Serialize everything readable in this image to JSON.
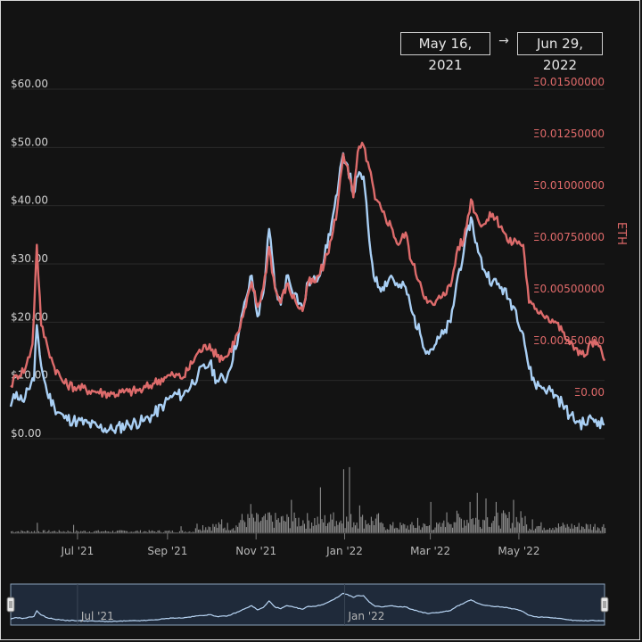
{
  "range_selector": {
    "start": "May 16, 2021",
    "arrow": "→",
    "end": "Jun 29, 2022"
  },
  "colors": {
    "usd_line": "#a9cff4",
    "eth_line": "#dd6b6b",
    "volume": "#8d8d8d",
    "grid": "#2a2a2a",
    "background": "#131313",
    "navigator_fill": "#1f2a3a"
  },
  "chart_data": {
    "type": "line",
    "title": "",
    "y_left": {
      "ticks": [
        "$0.00",
        "$10.00",
        "$20.00",
        "$30.00",
        "$40.00",
        "$50.00",
        "$60.00"
      ],
      "range": [
        0,
        60
      ]
    },
    "y_right": {
      "label": "ETH",
      "ticks": [
        "Ξ0.00",
        "Ξ0.00250000",
        "Ξ0.00500000",
        "Ξ0.00750000",
        "Ξ0.01000000",
        "Ξ0.01250000",
        "Ξ0.01500000"
      ],
      "range": [
        0,
        0.015
      ]
    },
    "x_ticks": [
      {
        "label": "Jul '21",
        "date": "2021-07-01"
      },
      {
        "label": "Sep '21",
        "date": "2021-09-01"
      },
      {
        "label": "Nov '21",
        "date": "2021-11-01"
      },
      {
        "label": "Jan '22",
        "date": "2022-01-01"
      },
      {
        "label": "Mar '22",
        "date": "2022-03-01"
      },
      {
        "label": "May '22",
        "date": "2022-05-01"
      }
    ],
    "navigator_ticks": [
      {
        "label": "Jul '21",
        "date": "2021-07-01"
      },
      {
        "label": "Jan '22",
        "date": "2022-01-01"
      }
    ],
    "x_range": [
      "2021-05-16",
      "2022-06-29"
    ],
    "grid": true,
    "series": [
      {
        "axis": "left",
        "unit": "USD",
        "points": [
          [
            "2021-05-16",
            5.5
          ],
          [
            "2021-05-20",
            8
          ],
          [
            "2021-05-24",
            6.5
          ],
          [
            "2021-05-28",
            8.5
          ],
          [
            "2021-06-01",
            10
          ],
          [
            "2021-06-03",
            19.5
          ],
          [
            "2021-06-06",
            12.5
          ],
          [
            "2021-06-10",
            8
          ],
          [
            "2021-06-15",
            5.5
          ],
          [
            "2021-06-22",
            3.5
          ],
          [
            "2021-07-01",
            3
          ],
          [
            "2021-07-15",
            2
          ],
          [
            "2021-07-25",
            1.5
          ],
          [
            "2021-08-05",
            2.5
          ],
          [
            "2021-08-15",
            3
          ],
          [
            "2021-08-22",
            4
          ],
          [
            "2021-08-30",
            6
          ],
          [
            "2021-09-05",
            7.5
          ],
          [
            "2021-09-12",
            7.5
          ],
          [
            "2021-09-22",
            11
          ],
          [
            "2021-09-30",
            13
          ],
          [
            "2021-10-05",
            10
          ],
          [
            "2021-10-12",
            10.5
          ],
          [
            "2021-10-20",
            18
          ],
          [
            "2021-10-25",
            24
          ],
          [
            "2021-10-29",
            28
          ],
          [
            "2021-11-02",
            21
          ],
          [
            "2021-11-06",
            25
          ],
          [
            "2021-11-10",
            36
          ],
          [
            "2021-11-14",
            26
          ],
          [
            "2021-11-18",
            23
          ],
          [
            "2021-11-22",
            28
          ],
          [
            "2021-11-28",
            25
          ],
          [
            "2021-12-03",
            22
          ],
          [
            "2021-12-07",
            27
          ],
          [
            "2021-12-12",
            27
          ],
          [
            "2021-12-18",
            31
          ],
          [
            "2021-12-23",
            37
          ],
          [
            "2021-12-27",
            42
          ],
          [
            "2021-12-31",
            49
          ],
          [
            "2022-01-03",
            47
          ],
          [
            "2022-01-07",
            42
          ],
          [
            "2022-01-10",
            45
          ],
          [
            "2022-01-14",
            45
          ],
          [
            "2022-01-18",
            34
          ],
          [
            "2022-01-22",
            27
          ],
          [
            "2022-01-27",
            26
          ],
          [
            "2022-02-02",
            28
          ],
          [
            "2022-02-07",
            26
          ],
          [
            "2022-02-12",
            26
          ],
          [
            "2022-02-16",
            22
          ],
          [
            "2022-02-22",
            18
          ],
          [
            "2022-02-27",
            15
          ],
          [
            "2022-03-04",
            16
          ],
          [
            "2022-03-10",
            18
          ],
          [
            "2022-03-15",
            20
          ],
          [
            "2022-03-20",
            28
          ],
          [
            "2022-03-24",
            32
          ],
          [
            "2022-03-29",
            38
          ],
          [
            "2022-04-03",
            32
          ],
          [
            "2022-04-07",
            29
          ],
          [
            "2022-04-13",
            27
          ],
          [
            "2022-04-19",
            26
          ],
          [
            "2022-04-24",
            24
          ],
          [
            "2022-04-29",
            22
          ],
          [
            "2022-05-04",
            18
          ],
          [
            "2022-05-08",
            12
          ],
          [
            "2022-05-12",
            9.5
          ],
          [
            "2022-05-16",
            9
          ],
          [
            "2022-05-21",
            8.5
          ],
          [
            "2022-05-26",
            7.5
          ],
          [
            "2022-05-31",
            6
          ],
          [
            "2022-06-05",
            4
          ],
          [
            "2022-06-10",
            3
          ],
          [
            "2022-06-15",
            2.5
          ],
          [
            "2022-06-20",
            3.5
          ],
          [
            "2022-06-25",
            3
          ],
          [
            "2022-06-29",
            2.5
          ]
        ]
      },
      {
        "axis": "right",
        "unit": "ETH",
        "points": [
          [
            "2021-05-16",
            0.0005
          ],
          [
            "2021-05-20",
            0.001
          ],
          [
            "2021-05-26",
            0.0013
          ],
          [
            "2021-05-31",
            0.0025
          ],
          [
            "2021-06-03",
            0.0073
          ],
          [
            "2021-06-06",
            0.0034
          ],
          [
            "2021-06-10",
            0.0025
          ],
          [
            "2021-06-15",
            0.0014
          ],
          [
            "2021-06-22",
            0.0006
          ],
          [
            "2021-07-01",
            0.0004
          ],
          [
            "2021-07-15",
            0.0002
          ],
          [
            "2021-07-25",
            0.0001
          ],
          [
            "2021-08-05",
            0.0002
          ],
          [
            "2021-08-15",
            0.0003
          ],
          [
            "2021-08-22",
            0.0006
          ],
          [
            "2021-08-30",
            0.0009
          ],
          [
            "2021-09-05",
            0.001
          ],
          [
            "2021-09-12",
            0.0009
          ],
          [
            "2021-09-22",
            0.0021
          ],
          [
            "2021-09-30",
            0.0025
          ],
          [
            "2021-10-05",
            0.0019
          ],
          [
            "2021-10-12",
            0.0019
          ],
          [
            "2021-10-20",
            0.0031
          ],
          [
            "2021-10-25",
            0.0043
          ],
          [
            "2021-10-29",
            0.0055
          ],
          [
            "2021-11-02",
            0.0043
          ],
          [
            "2021-11-06",
            0.0052
          ],
          [
            "2021-11-10",
            0.0072
          ],
          [
            "2021-11-14",
            0.0052
          ],
          [
            "2021-11-18",
            0.0045
          ],
          [
            "2021-11-22",
            0.0054
          ],
          [
            "2021-11-28",
            0.0046
          ],
          [
            "2021-12-03",
            0.0041
          ],
          [
            "2021-12-07",
            0.0055
          ],
          [
            "2021-12-12",
            0.0055
          ],
          [
            "2021-12-18",
            0.0064
          ],
          [
            "2021-12-23",
            0.0076
          ],
          [
            "2021-12-27",
            0.0091
          ],
          [
            "2021-12-31",
            0.0117
          ],
          [
            "2022-01-03",
            0.0111
          ],
          [
            "2022-01-07",
            0.0096
          ],
          [
            "2022-01-10",
            0.0118
          ],
          [
            "2022-01-14",
            0.0121
          ],
          [
            "2022-01-18",
            0.011
          ],
          [
            "2022-01-22",
            0.0095
          ],
          [
            "2022-01-27",
            0.0089
          ],
          [
            "2022-02-02",
            0.0082
          ],
          [
            "2022-02-07",
            0.0073
          ],
          [
            "2022-02-12",
            0.0079
          ],
          [
            "2022-02-16",
            0.0065
          ],
          [
            "2022-02-22",
            0.0055
          ],
          [
            "2022-02-27",
            0.0045
          ],
          [
            "2022-03-04",
            0.0044
          ],
          [
            "2022-03-10",
            0.005
          ],
          [
            "2022-03-15",
            0.0053
          ],
          [
            "2022-03-20",
            0.0072
          ],
          [
            "2022-03-24",
            0.0075
          ],
          [
            "2022-03-29",
            0.0095
          ],
          [
            "2022-04-03",
            0.0085
          ],
          [
            "2022-04-07",
            0.0083
          ],
          [
            "2022-04-13",
            0.0088
          ],
          [
            "2022-04-19",
            0.0082
          ],
          [
            "2022-04-24",
            0.0074
          ],
          [
            "2022-04-29",
            0.0075
          ],
          [
            "2022-05-04",
            0.0073
          ],
          [
            "2022-05-08",
            0.0045
          ],
          [
            "2022-05-12",
            0.0042
          ],
          [
            "2022-05-16",
            0.0041
          ],
          [
            "2022-05-21",
            0.0038
          ],
          [
            "2022-05-26",
            0.0036
          ],
          [
            "2022-05-31",
            0.0031
          ],
          [
            "2022-06-05",
            0.0025
          ],
          [
            "2022-06-10",
            0.0023
          ],
          [
            "2022-06-15",
            0.0019
          ],
          [
            "2022-06-20",
            0.0026
          ],
          [
            "2022-06-25",
            0.0024
          ],
          [
            "2022-06-29",
            0.0017
          ]
        ]
      }
    ],
    "volume": {
      "shown": true,
      "spikes": [
        [
          "2021-06-03",
          0.15
        ],
        [
          "2021-06-28",
          0.12
        ],
        [
          "2021-09-10",
          0.1
        ],
        [
          "2021-10-08",
          0.2
        ],
        [
          "2021-10-28",
          0.42
        ],
        [
          "2021-11-10",
          0.3
        ],
        [
          "2021-11-25",
          0.48
        ],
        [
          "2021-12-15",
          0.66
        ],
        [
          "2021-12-24",
          0.3
        ],
        [
          "2021-12-31",
          0.92
        ],
        [
          "2022-01-04",
          0.95
        ],
        [
          "2022-01-11",
          0.4
        ],
        [
          "2022-02-20",
          0.22
        ],
        [
          "2022-03-01",
          0.45
        ],
        [
          "2022-03-28",
          0.45
        ],
        [
          "2022-04-02",
          0.58
        ],
        [
          "2022-04-08",
          0.5
        ],
        [
          "2022-04-15",
          0.45
        ],
        [
          "2022-04-27",
          0.48
        ],
        [
          "2022-05-10",
          0.2
        ],
        [
          "2022-06-06",
          0.12
        ]
      ]
    }
  }
}
